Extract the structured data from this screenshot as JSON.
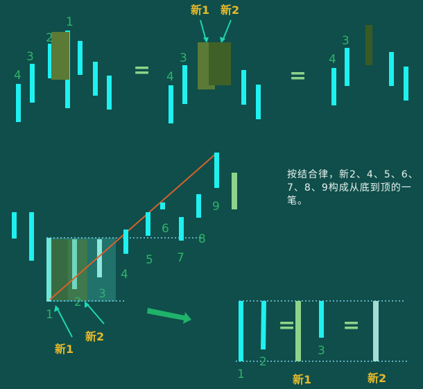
{
  "colors": {
    "background": "#0f4e4a",
    "bar": "#1ff0f0",
    "merged_bar": "#5a7a36",
    "merged_bar_dark": "#3a5a24",
    "label_green": "#2fb36b",
    "label_yellow": "#e7b92b",
    "stroke_line": "#d8622a",
    "light_green_bar": "#8ed38a",
    "arrow": "#1fb26a"
  },
  "labels": {
    "n1": "1",
    "n2": "2",
    "n3": "3",
    "n4": "4",
    "n5": "5",
    "n6": "6",
    "n7": "7",
    "n8": "8",
    "n9": "9",
    "new1": "新1",
    "new2": "新2",
    "equals": "="
  },
  "note_text": "按结合律，新2、4、5、6、7、8、9构成从底到顶的一笔。"
}
